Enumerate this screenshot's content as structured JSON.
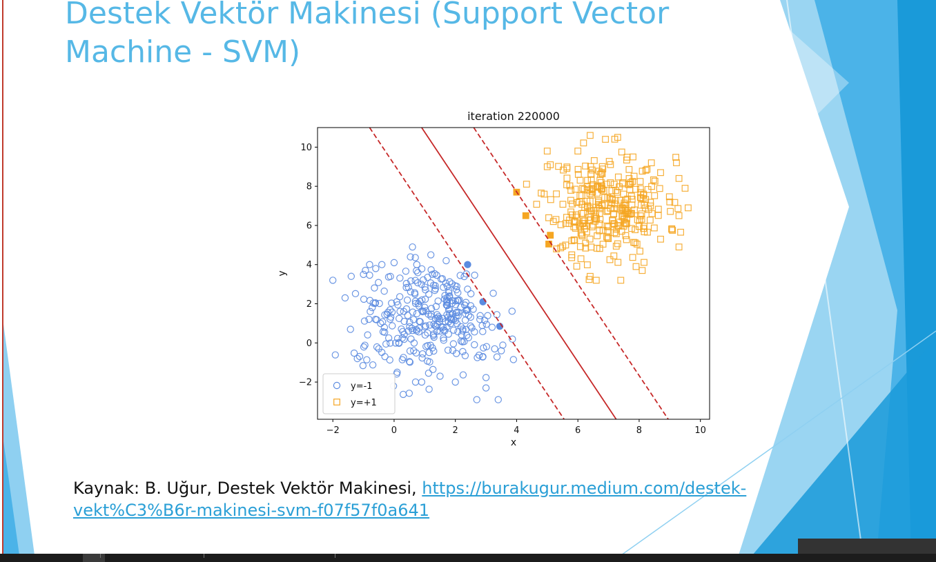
{
  "slide": {
    "title_line1": "Destek Vektör Makinesi (Support Vector",
    "title_line2": "Machine - SVM)",
    "source_prefix": "Kaynak: B. Uğur, Destek Vektör Makinesi, ",
    "source_link": "https://burakugur.medium.com/destek-vekt%C3%B6r-makinesi-svm-f07f57f0a641",
    "accent_color": "#56b8e6",
    "deco_colors": [
      "#1a9ad9",
      "#8fd0f1",
      "#4bb3e8"
    ]
  },
  "chart_data": {
    "type": "scatter",
    "title": "iteration 220000",
    "xlabel": "x",
    "ylabel": "y",
    "xlim": [
      -2.5,
      10.3
    ],
    "ylim": [
      -3.9,
      11
    ],
    "xticks": [
      -2,
      0,
      2,
      4,
      6,
      8,
      10
    ],
    "yticks": [
      -2,
      0,
      2,
      4,
      6,
      8,
      10
    ],
    "xtick_labels": [
      "−2",
      "0",
      "2",
      "4",
      "6",
      "8",
      "10"
    ],
    "ytick_labels": [
      "−2",
      "0",
      "2",
      "4",
      "6",
      "8",
      "10"
    ],
    "grid": false,
    "legend_position": "lower-left",
    "series": [
      {
        "name": "y=-1",
        "marker": "circle",
        "color": "#5b8be0",
        "cluster": {
          "center": [
            1.2,
            1.2
          ],
          "spread": [
            1.25,
            1.35
          ],
          "count": 300,
          "seed": 7
        },
        "points": [
          [
            -2.0,
            3.2
          ],
          [
            -1.6,
            2.3
          ],
          [
            -1.4,
            3.4
          ],
          [
            -1.2,
            -0.8
          ],
          [
            -1.0,
            3.5
          ],
          [
            -0.8,
            4.0
          ],
          [
            -0.6,
            3.8
          ],
          [
            -0.4,
            4.0
          ],
          [
            0.0,
            4.1
          ],
          [
            0.6,
            4.9
          ],
          [
            1.2,
            4.5
          ],
          [
            1.7,
            4.2
          ],
          [
            -0.5,
            -0.3
          ],
          [
            -0.3,
            -0.7
          ],
          [
            0.1,
            -1.5
          ],
          [
            0.7,
            -2.0
          ],
          [
            0.9,
            -2.0
          ],
          [
            1.5,
            -1.7
          ],
          [
            2.0,
            -2.0
          ],
          [
            2.7,
            -2.9
          ],
          [
            3.0,
            -2.3
          ],
          [
            3.4,
            -2.9
          ],
          [
            3.5,
            -0.4
          ],
          [
            2.9,
            -0.7
          ],
          [
            3.2,
            0.8
          ],
          [
            2.8,
            1.2
          ],
          [
            2.5,
            1.9
          ]
        ]
      },
      {
        "name": "y=+1",
        "marker": "square",
        "color": "#f5a623",
        "cluster": {
          "center": [
            7.0,
            7.0
          ],
          "spread": [
            0.95,
            1.25
          ],
          "count": 300,
          "seed": 11
        },
        "points": [
          [
            5.0,
            9.8
          ],
          [
            5.1,
            9.1
          ],
          [
            5.0,
            9.0
          ],
          [
            4.9,
            7.6
          ],
          [
            5.2,
            6.2
          ],
          [
            5.6,
            5.0
          ],
          [
            5.3,
            4.8
          ],
          [
            5.8,
            4.5
          ],
          [
            6.1,
            4.3
          ],
          [
            6.4,
            3.4
          ],
          [
            6.6,
            3.2
          ],
          [
            7.4,
            3.2
          ],
          [
            7.9,
            3.9
          ],
          [
            8.1,
            3.7
          ],
          [
            8.7,
            5.3
          ],
          [
            9.3,
            4.9
          ],
          [
            9.0,
            7.2
          ],
          [
            9.3,
            6.5
          ],
          [
            9.6,
            6.9
          ],
          [
            9.5,
            7.9
          ],
          [
            9.3,
            8.4
          ],
          [
            8.7,
            8.7
          ],
          [
            8.4,
            9.2
          ],
          [
            7.8,
            9.5
          ],
          [
            7.3,
            10.5
          ],
          [
            6.9,
            10.4
          ],
          [
            6.4,
            10.6
          ],
          [
            6.0,
            9.8
          ]
        ]
      }
    ],
    "support_vectors": [
      {
        "x": 2.4,
        "y": 4.0,
        "class": "y=-1"
      },
      {
        "x": 2.9,
        "y": 2.1,
        "class": "y=-1"
      },
      {
        "x": 3.45,
        "y": 0.85,
        "class": "y=-1"
      },
      {
        "x": 4.0,
        "y": 7.7,
        "class": "y=+1"
      },
      {
        "x": 4.3,
        "y": 6.5,
        "class": "y=+1"
      },
      {
        "x": 5.1,
        "y": 5.5,
        "class": "y=+1"
      },
      {
        "x": 5.05,
        "y": 5.05,
        "class": "y=+1"
      }
    ],
    "lines": [
      {
        "role": "decision boundary",
        "style": "solid",
        "color": "#c62828",
        "from": [
          0.9,
          11.0
        ],
        "to": [
          7.25,
          -3.9
        ]
      },
      {
        "role": "margin",
        "style": "dashed",
        "color": "#c62828",
        "from": [
          -0.8,
          11.0
        ],
        "to": [
          5.55,
          -3.9
        ]
      },
      {
        "role": "margin",
        "style": "dashed",
        "color": "#c62828",
        "from": [
          2.6,
          11.0
        ],
        "to": [
          8.95,
          -3.9
        ]
      }
    ]
  }
}
